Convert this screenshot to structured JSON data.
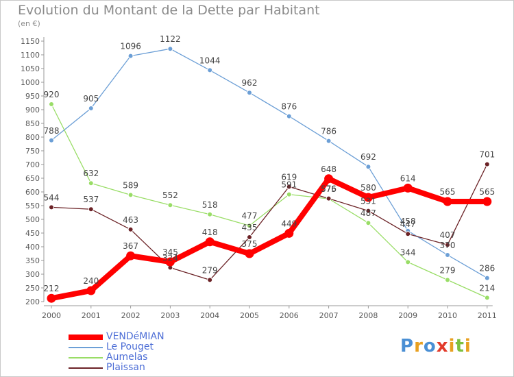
{
  "chart_data": {
    "type": "line",
    "title": "Evolution du Montant de la Dette par Habitant",
    "subtitle": "(en €)",
    "categories": [
      "2000",
      "2001",
      "2002",
      "2003",
      "2004",
      "2005",
      "2006",
      "2007",
      "2008",
      "2009",
      "2010",
      "2011"
    ],
    "ylim": [
      200,
      1150
    ],
    "yticks": [
      200,
      250,
      300,
      350,
      400,
      450,
      500,
      550,
      600,
      650,
      700,
      750,
      800,
      850,
      900,
      950,
      1000,
      1050,
      1100,
      1150
    ],
    "grid": false,
    "legend_placement": "bottom-left",
    "series": [
      {
        "name": "VENDéMIAN",
        "color": "#ff0000",
        "values": [
          212,
          240,
          367,
          345,
          418,
          375,
          449,
          648,
          580,
          614,
          565,
          565
        ]
      },
      {
        "name": "Le Pouget",
        "color": "#6c9fd6",
        "values": [
          788,
          905,
          1096,
          1122,
          1044,
          962,
          876,
          786,
          692,
          458,
          370,
          286
        ]
      },
      {
        "name": "Aumelas",
        "color": "#99dd66",
        "values": [
          920,
          632,
          589,
          552,
          518,
          477,
          591,
          575,
          487,
          344,
          279,
          214
        ]
      },
      {
        "name": "Plaissan",
        "color": "#6b2226",
        "values": [
          544,
          537,
          463,
          324,
          279,
          435,
          619,
          576,
          531,
          447,
          407,
          701
        ]
      }
    ]
  },
  "legend": [
    "VENDéMIAN",
    "Le Pouget",
    "Aumelas",
    "Plaissan"
  ],
  "logo": {
    "text": "Proxiti",
    "letters": [
      "P",
      "r",
      "o",
      "x",
      "i",
      "t",
      "i"
    ],
    "colors": [
      "#4a8fd4",
      "#e8a020",
      "#4a8fd4",
      "#e23a2a",
      "#e8a020",
      "#7cc040",
      "#e8a020"
    ]
  }
}
